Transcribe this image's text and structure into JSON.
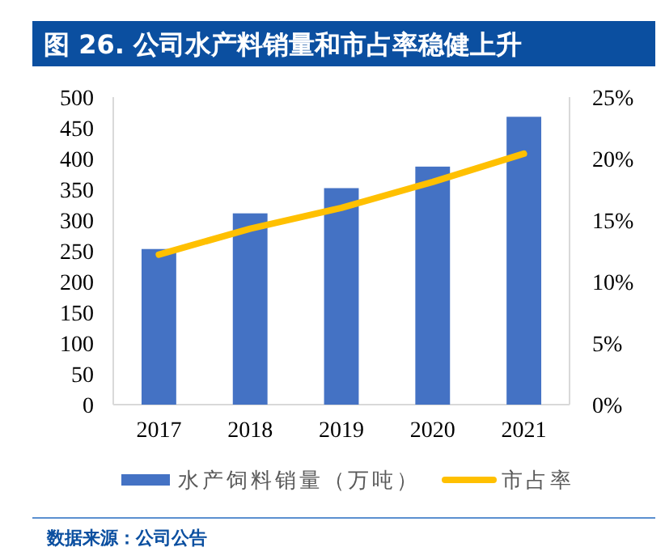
{
  "chart_data": {
    "type": "bar",
    "title": "图 26. 公司水产料销量和市占率稳健上升",
    "categories": [
      "2017",
      "2018",
      "2019",
      "2020",
      "2021"
    ],
    "series": [
      {
        "name": "水产饲料销量（万吨）",
        "color": "#4472c4",
        "values": [
          253,
          311,
          352,
          387,
          468
        ]
      },
      {
        "name": "市占率",
        "type": "line",
        "axis": "y2",
        "color": "#ffc000",
        "values": [
          12.2,
          14.3,
          16,
          18.1,
          20.4
        ]
      }
    ],
    "ylim": [
      0,
      500
    ],
    "yticks": [
      0,
      50,
      100,
      150,
      200,
      250,
      300,
      350,
      400,
      450,
      500
    ],
    "y2lim": [
      0,
      25
    ],
    "y2ticks": [
      {
        "value": 0,
        "label": "0%"
      },
      {
        "value": 5,
        "label": "5%"
      },
      {
        "value": 10,
        "label": "10%"
      },
      {
        "value": 15,
        "label": "15%"
      },
      {
        "value": 20,
        "label": "20%"
      },
      {
        "value": 25,
        "label": "25%"
      }
    ],
    "legend": "bottom",
    "annotations": [
      "数据来源：公司公告"
    ]
  }
}
